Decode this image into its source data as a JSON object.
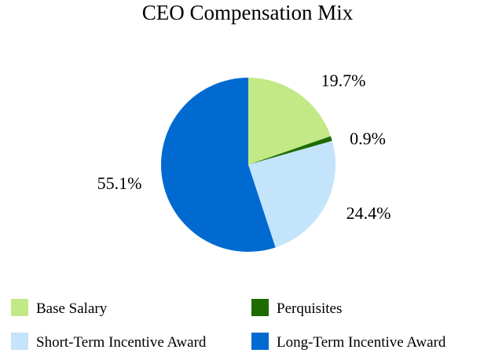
{
  "chart_data": {
    "type": "pie",
    "title": "CEO Compensation Mix",
    "slices": [
      {
        "label": "Base Salary",
        "value": 19.7,
        "value_label": "19.7%",
        "color": "#c3e886"
      },
      {
        "label": "Perquisites",
        "value": 0.9,
        "value_label": "0.9%",
        "color": "#1e6b00"
      },
      {
        "label": "Short-Term Incentive Award",
        "value": 24.4,
        "value_label": "24.4%",
        "color": "#c3e4fb"
      },
      {
        "label": "Long-Term Incentive Award",
        "value": 55.1,
        "value_label": "55.1%",
        "color": "#006ad1"
      }
    ],
    "start_angle": "12 o'clock",
    "direction": "clockwise",
    "legend_position": "bottom"
  }
}
